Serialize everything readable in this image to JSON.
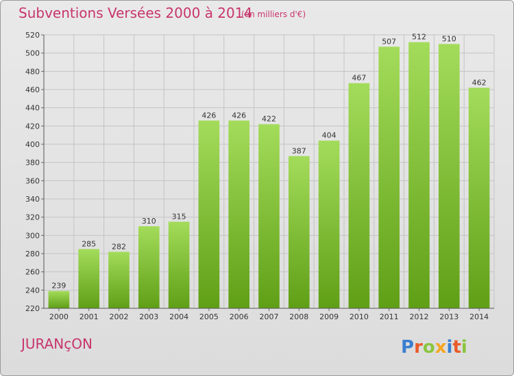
{
  "header": {
    "title": "Subventions Versées 2000 à 2014",
    "unit": "(en milliers d'€)"
  },
  "footer": {
    "commune": "JURANçON",
    "logo_text": "Proxiti"
  },
  "colors": {
    "bar_light": "#a3dc5a",
    "bar_dark": "#5f9f16",
    "title": "#c8346c",
    "grid": "#c4c4c4",
    "logo": [
      "#3a7fd0",
      "#e85b2a",
      "#8bc53f",
      "#f5a623",
      "#3a7fd0",
      "#e85b2a",
      "#8bc53f"
    ]
  },
  "chart_data": {
    "type": "bar",
    "title": "Subventions Versées 2000 à 2014",
    "xlabel": "",
    "ylabel": "",
    "categories": [
      "2000",
      "2001",
      "2002",
      "2003",
      "2004",
      "2005",
      "2006",
      "2007",
      "2008",
      "2009",
      "2010",
      "2011",
      "2012",
      "2013",
      "2014"
    ],
    "values": [
      239,
      285,
      282,
      310,
      315,
      426,
      426,
      422,
      387,
      404,
      467,
      507,
      512,
      510,
      462
    ],
    "ylim": [
      220,
      520
    ],
    "yticks": [
      220,
      240,
      260,
      280,
      300,
      320,
      340,
      360,
      380,
      400,
      420,
      440,
      460,
      480,
      500,
      520
    ],
    "grid": true,
    "legend": "none"
  }
}
